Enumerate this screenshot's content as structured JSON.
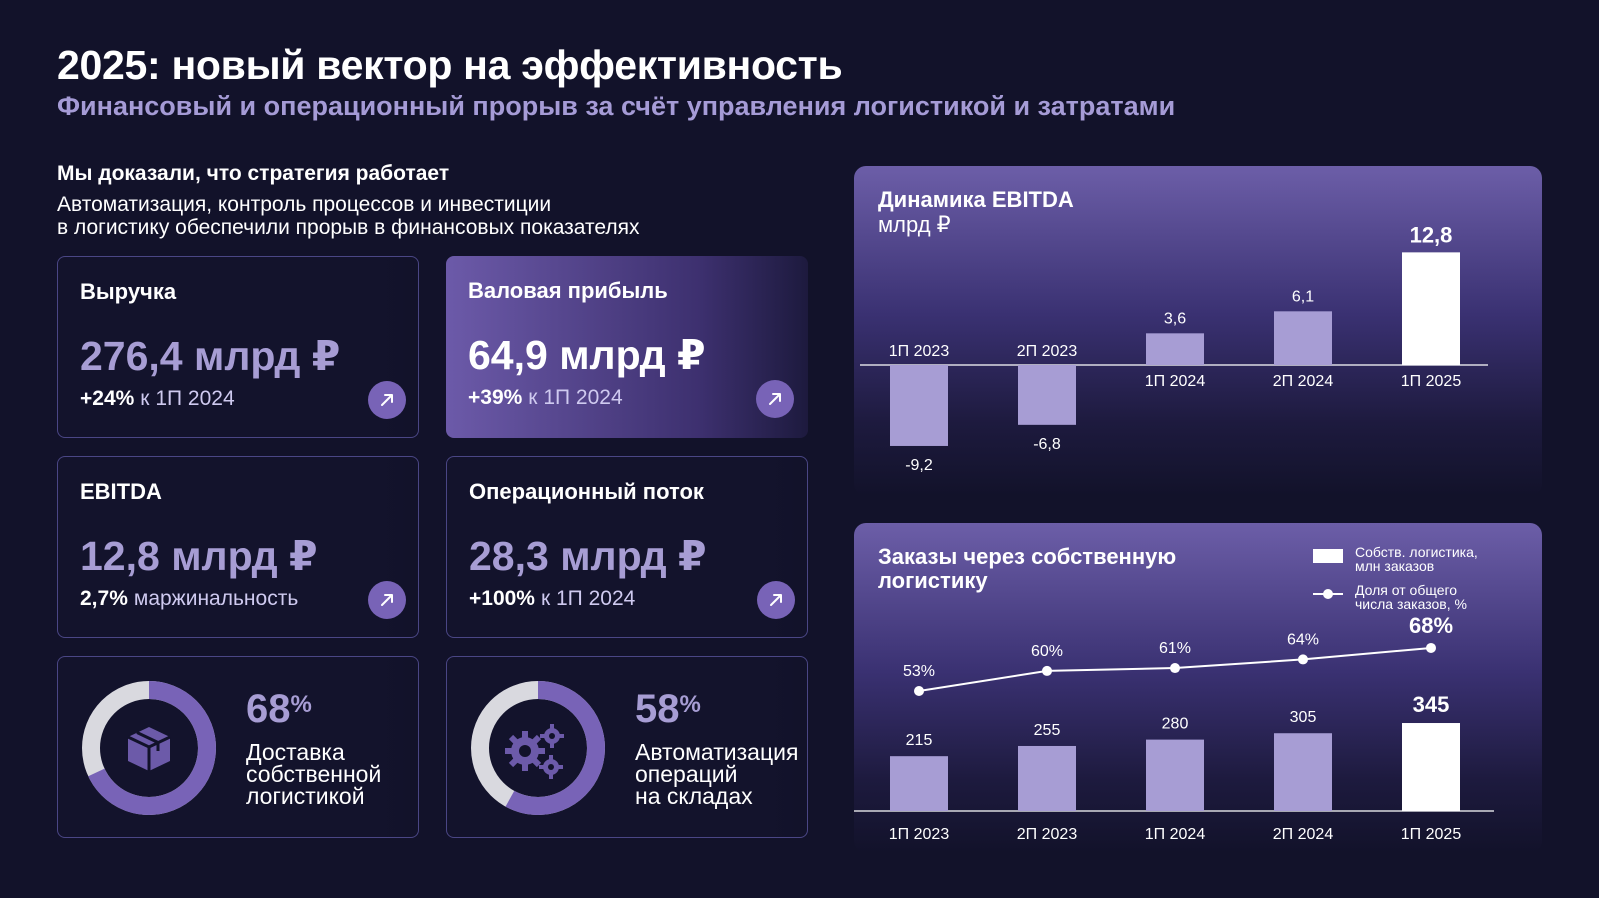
{
  "header": {
    "title": "2025: новый вектор на эффективность",
    "subtitle": "Финансовый и операционный прорыв за счёт управления логистикой и затратами"
  },
  "intro": {
    "heading": "Мы доказали, что стратегия работает",
    "line1": "Автоматизация, контроль процессов и инвестиции",
    "line2": "в логистику обеспечили прорыв в финансовых показателях"
  },
  "cards": [
    {
      "label": "Выручка",
      "value": "276,4 млрд ₽",
      "change": "+24%",
      "note": "к 1П 2024"
    },
    {
      "label": "Валовая прибыль",
      "value": "64,9 млрд ₽",
      "change": "+39%",
      "note": "к 1П 2024"
    },
    {
      "label": "EBITDA",
      "value": "12,8 млрд ₽",
      "change": "2,7%",
      "note": "маржинальность"
    },
    {
      "label": "Операционный поток",
      "value": "28,3 млрд ₽",
      "change": "+100%",
      "note": "к 1П 2024"
    }
  ],
  "donuts": [
    {
      "percent": 68,
      "value": "68",
      "sign": "%",
      "line1": "Доставка",
      "line2": "собственной",
      "line3": "логистикой",
      "icon": "box-icon"
    },
    {
      "percent": 58,
      "value": "58",
      "sign": "%",
      "line1": "Автоматизация",
      "line2": "операций",
      "line3": "на складах",
      "icon": "gears-icon"
    }
  ],
  "colors": {
    "background": "#12122a",
    "accent": "#7863b7",
    "bar": "#a79dd4",
    "highlight": "#ffffff"
  },
  "chart_data": [
    {
      "type": "bar",
      "title": "Динамика EBITDA",
      "unit": "млрд ₽",
      "categories": [
        "1П 2023",
        "2П 2023",
        "1П 2024",
        "2П 2024",
        "1П 2025"
      ],
      "values": [
        -9.2,
        -6.8,
        3.6,
        6.1,
        12.8
      ],
      "labels": [
        "-9,2",
        "-6,8",
        "3,6",
        "6,1",
        "12,8"
      ],
      "highlight_index": 4,
      "ylim": [
        -9.2,
        12.8
      ]
    },
    {
      "type": "bar",
      "title_line1": "Заказы через собственную",
      "title_line2": "логистику",
      "legend": {
        "bars_line1": "Собств. логистика,",
        "bars_line2": "млн заказов",
        "line_line1": "Доля от общего",
        "line_line2": "числа заказов, %"
      },
      "categories": [
        "1П 2023",
        "2П 2023",
        "1П 2024",
        "2П 2024",
        "1П 2025"
      ],
      "series": [
        {
          "name": "Собств. логистика, млн заказов",
          "type": "bar",
          "values": [
            215,
            255,
            280,
            305,
            345
          ],
          "labels": [
            "215",
            "255",
            "280",
            "305",
            "345"
          ]
        },
        {
          "name": "Доля от общего числа заказов, %",
          "type": "line",
          "values": [
            53,
            60,
            61,
            64,
            68
          ],
          "labels": [
            "53%",
            "60%",
            "61%",
            "64%",
            "68%"
          ]
        }
      ],
      "highlight_index": 4
    }
  ]
}
